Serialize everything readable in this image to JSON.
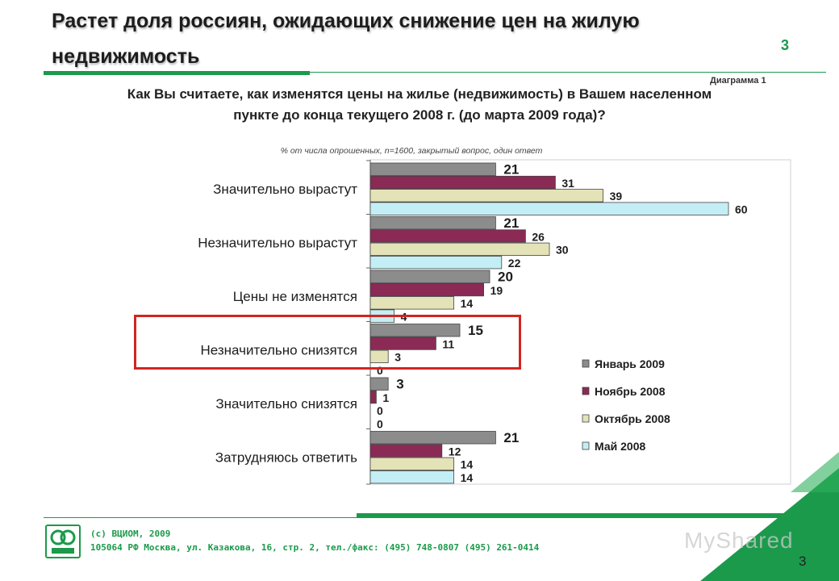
{
  "header": {
    "title": "Растет доля россиян, ожидающих снижение цен на жилую недвижимость",
    "page_number": "3",
    "diagram_label": "Диаграмма 1"
  },
  "question": {
    "text": "Как Вы считаете, как изменятся цены на жилье (недвижимость) в Вашем населенном пункте до конца текущего 2008 г. (до марта 2009 года)?",
    "note": "% от числа опрошенных, n=1600, закрытый вопрос, один ответ"
  },
  "chart_data": {
    "type": "bar",
    "orientation": "horizontal",
    "categories": [
      "Значительно вырастут",
      "Незначительно вырастут",
      "Цены не изменятся",
      "Незначительно снизятся",
      "Значительно снизятся",
      "Затрудняюсь ответить"
    ],
    "series": [
      {
        "name": "Январь 2009",
        "values": [
          21,
          21,
          20,
          15,
          3,
          21
        ],
        "color": "#8c8c8c"
      },
      {
        "name": "Ноябрь 2008",
        "values": [
          31,
          26,
          19,
          11,
          1,
          12
        ],
        "color": "#8b2a55"
      },
      {
        "name": "Октябрь 2008",
        "values": [
          39,
          30,
          14,
          3,
          0,
          14
        ],
        "color": "#e4e3b8"
      },
      {
        "name": "Май 2008",
        "values": [
          60,
          22,
          4,
          0,
          0,
          14
        ],
        "color": "#c4eef5"
      }
    ],
    "xlim": [
      0,
      70
    ],
    "highlighted_category": "Незначительно снизятся",
    "legend_position": "right"
  },
  "footer": {
    "line1": "(с) ВЦИОМ, 2009",
    "line2": "105064 РФ Москва, ул. Казакова, 16, стр. 2, тел./факс: (495) 748-0807 (495) 261-0414",
    "page_number": "3",
    "watermark": "MyShared"
  },
  "colors": {
    "brand_green": "#1b9a4b",
    "highlight_red": "#d0261f"
  }
}
